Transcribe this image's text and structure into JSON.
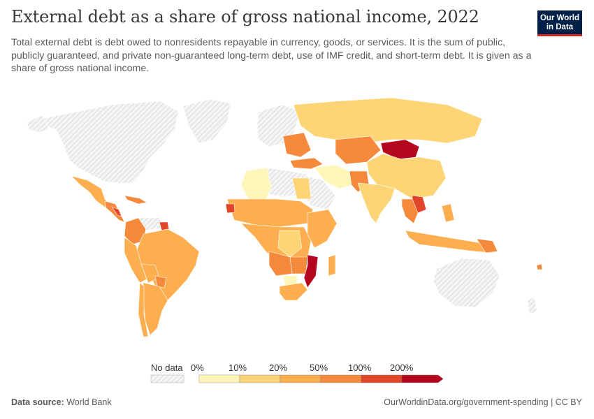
{
  "header": {
    "title": "External debt as a share of gross national income, 2022",
    "subtitle": "Total external debt is debt owed to nonresidents repayable in currency, goods, or services. It is the sum of public, publicly guaranteed, and private non-guaranteed long-term debt, use of IMF credit, and short-term debt. It is given as a share of gross national income."
  },
  "logo": {
    "line1": "Our World",
    "line2": "in Data"
  },
  "legend": {
    "no_data_label": "No data",
    "bins": [
      {
        "label": "0%",
        "color": "#fff7b9"
      },
      {
        "label": "10%",
        "color": "#fed576"
      },
      {
        "label": "20%",
        "color": "#fdae4f"
      },
      {
        "label": "50%",
        "color": "#f68a3c"
      },
      {
        "label": "100%",
        "color": "#e2462a"
      },
      {
        "label": "200%",
        "color": "#b5061f"
      }
    ]
  },
  "footer": {
    "source_label": "Data source:",
    "source": "World Bank",
    "url": "OurWorldinData.org/government-spending | CC BY"
  }
}
